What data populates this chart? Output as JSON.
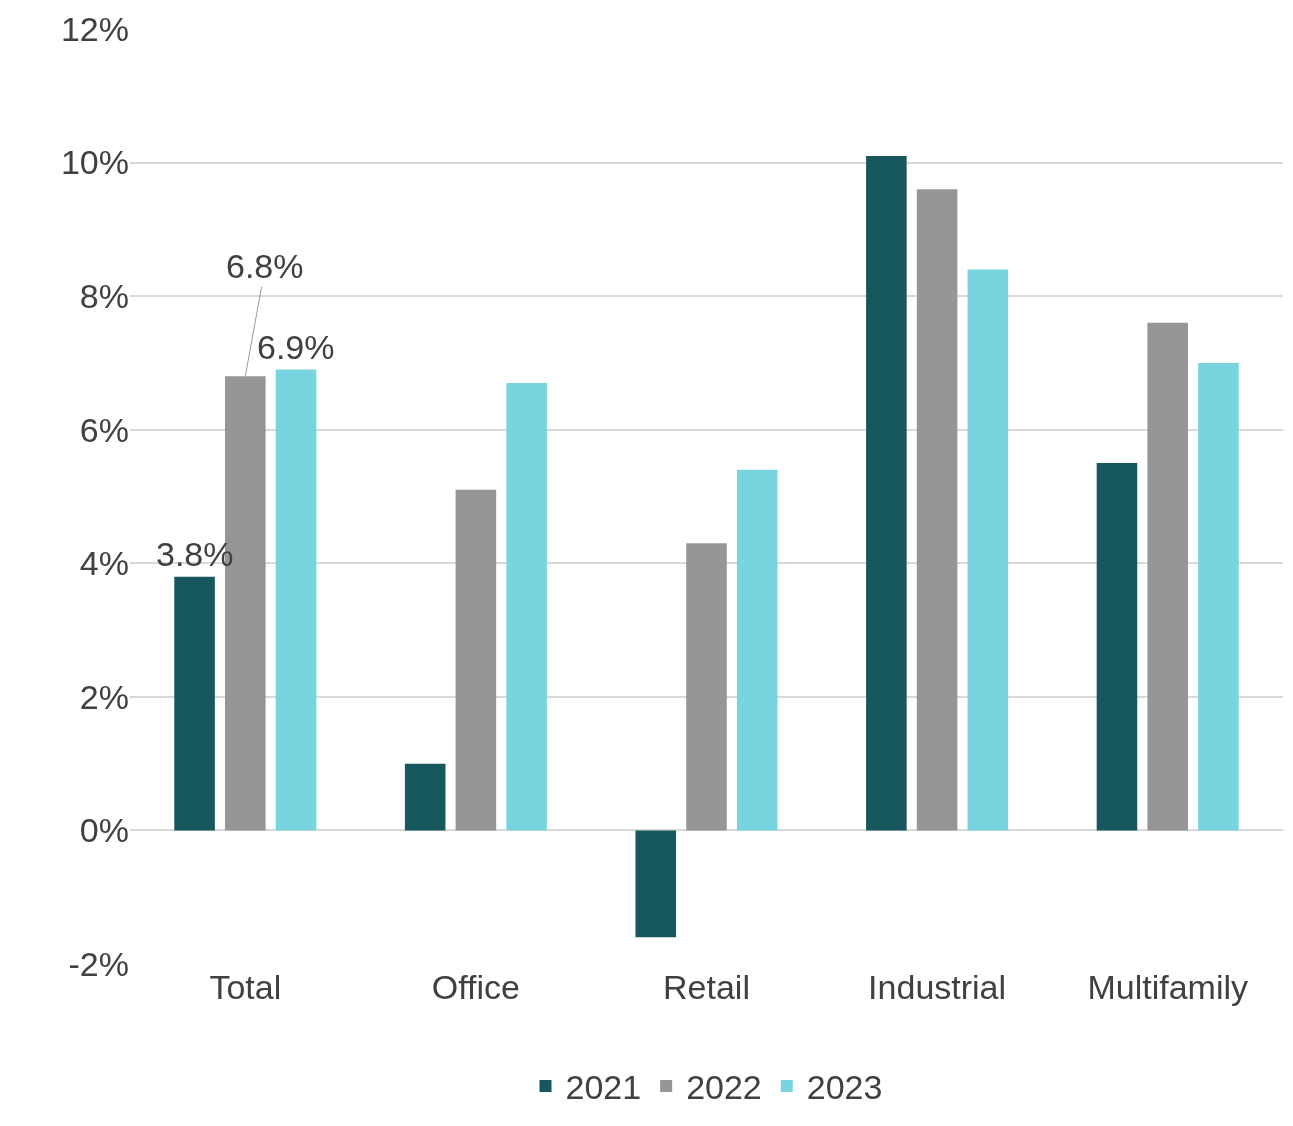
{
  "chart_data": {
    "type": "bar",
    "categories": [
      "Total",
      "Office",
      "Retail",
      "Industrial",
      "Multifamily"
    ],
    "series": [
      {
        "name": "2021",
        "color": "#17575e",
        "values": [
          3.8,
          1.0,
          -1.6,
          10.1,
          5.5
        ],
        "value_labels": [
          "3.8%",
          null,
          null,
          null,
          null
        ]
      },
      {
        "name": "2022",
        "color": "#969696",
        "values": [
          6.8,
          5.1,
          4.3,
          9.6,
          7.6
        ],
        "value_labels": [
          "6.8%",
          null,
          null,
          null,
          null
        ]
      },
      {
        "name": "2023",
        "color": "#78d5df",
        "values": [
          6.9,
          6.7,
          5.4,
          8.4,
          7.0
        ],
        "value_labels": [
          "6.9%",
          null,
          null,
          null,
          null
        ]
      }
    ],
    "ylim": [
      -2,
      12
    ],
    "yticks": [
      {
        "value": -2,
        "label": "-2%"
      },
      {
        "value": 0,
        "label": "0%"
      },
      {
        "value": 2,
        "label": "2%"
      },
      {
        "value": 4,
        "label": "4%"
      },
      {
        "value": 6,
        "label": "6%"
      },
      {
        "value": 8,
        "label": "8%"
      },
      {
        "value": 10,
        "label": "10%"
      },
      {
        "value": 12,
        "label": "12%"
      }
    ],
    "grid": "y",
    "legend": "bottom"
  }
}
